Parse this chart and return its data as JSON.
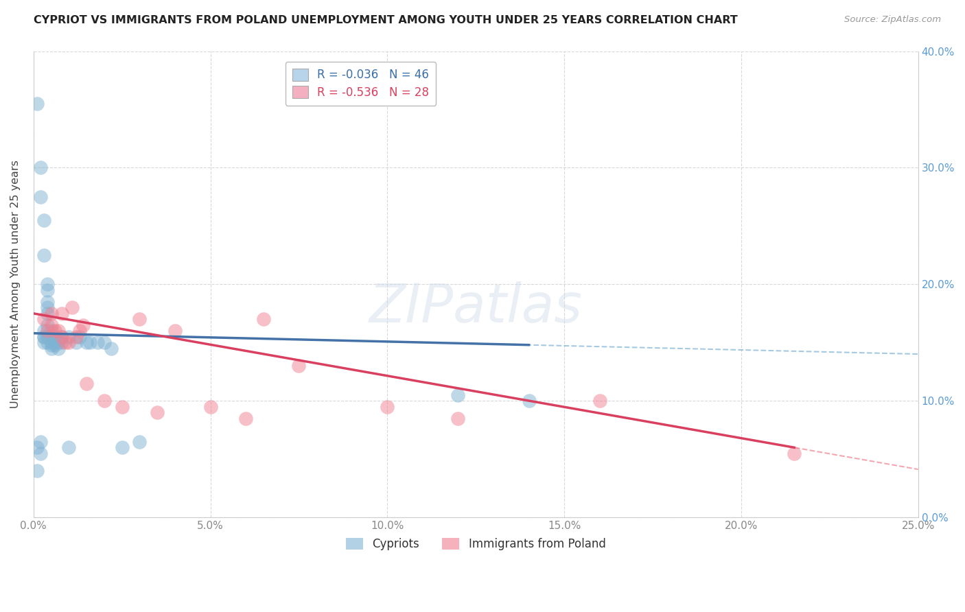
{
  "title": "CYPRIOT VS IMMIGRANTS FROM POLAND UNEMPLOYMENT AMONG YOUTH UNDER 25 YEARS CORRELATION CHART",
  "source": "Source: ZipAtlas.com",
  "ylabel": "Unemployment Among Youth under 25 years",
  "xlim": [
    0.0,
    0.25
  ],
  "ylim": [
    0.0,
    0.4
  ],
  "xticks": [
    0.0,
    0.05,
    0.1,
    0.15,
    0.2,
    0.25
  ],
  "yticks": [
    0.0,
    0.1,
    0.2,
    0.3,
    0.4
  ],
  "xticklabels": [
    "0.0%",
    "5.0%",
    "10.0%",
    "15.0%",
    "20.0%",
    "25.0%"
  ],
  "yticklabels_left": [
    "0.0%",
    "10.0%",
    "20.0%",
    "30.0%",
    "40.0%"
  ],
  "yticklabels_right": [
    "0.0%",
    "10.0%",
    "20.0%",
    "30.0%",
    "40.0%"
  ],
  "legend1_label1": "R = -0.036   N = 46",
  "legend1_label2": "R = -0.536   N = 28",
  "series1_label": "Cypriots",
  "series2_label": "Immigrants from Poland",
  "series1_color": "#7fb3d3",
  "series2_color": "#f08090",
  "series1_line_color": "#4472a8",
  "series2_line_color": "#d94060",
  "watermark": "ZIPatlas",
  "background_color": "#ffffff",
  "grid_color": "#c8c8c8",
  "title_color": "#222222",
  "axis_label_color": "#444444",
  "tick_label_color_left": "#888888",
  "tick_label_color_right": "#5b9bd5",
  "legend_patch1_color": "#b8d4ea",
  "legend_patch2_color": "#f4b0c0",
  "legend_text_color1": "#3a6ea8",
  "legend_text_color2": "#d94060",
  "cyp_x": [
    0.001,
    0.001,
    0.001,
    0.002,
    0.002,
    0.002,
    0.002,
    0.003,
    0.003,
    0.003,
    0.003,
    0.003,
    0.003,
    0.004,
    0.004,
    0.004,
    0.004,
    0.004,
    0.004,
    0.004,
    0.004,
    0.005,
    0.005,
    0.005,
    0.005,
    0.005,
    0.006,
    0.006,
    0.006,
    0.007,
    0.007,
    0.008,
    0.008,
    0.01,
    0.01,
    0.012,
    0.013,
    0.015,
    0.016,
    0.018,
    0.02,
    0.022,
    0.025,
    0.03,
    0.12,
    0.14
  ],
  "cyp_y": [
    0.355,
    0.06,
    0.04,
    0.3,
    0.275,
    0.065,
    0.055,
    0.255,
    0.225,
    0.16,
    0.155,
    0.155,
    0.15,
    0.2,
    0.195,
    0.185,
    0.18,
    0.175,
    0.165,
    0.155,
    0.15,
    0.16,
    0.155,
    0.15,
    0.148,
    0.145,
    0.155,
    0.15,
    0.148,
    0.15,
    0.145,
    0.155,
    0.15,
    0.155,
    0.06,
    0.15,
    0.155,
    0.15,
    0.15,
    0.15,
    0.15,
    0.145,
    0.06,
    0.065,
    0.105,
    0.1
  ],
  "pol_x": [
    0.003,
    0.004,
    0.005,
    0.005,
    0.006,
    0.007,
    0.008,
    0.008,
    0.009,
    0.01,
    0.011,
    0.012,
    0.013,
    0.014,
    0.015,
    0.02,
    0.025,
    0.03,
    0.035,
    0.04,
    0.05,
    0.06,
    0.065,
    0.075,
    0.1,
    0.12,
    0.16,
    0.215
  ],
  "pol_y": [
    0.17,
    0.16,
    0.175,
    0.165,
    0.16,
    0.16,
    0.155,
    0.175,
    0.15,
    0.15,
    0.18,
    0.155,
    0.16,
    0.165,
    0.115,
    0.1,
    0.095,
    0.17,
    0.09,
    0.16,
    0.095,
    0.085,
    0.17,
    0.13,
    0.095,
    0.085,
    0.1,
    0.055
  ],
  "regline1_x0": 0.0,
  "regline1_y0": 0.158,
  "regline1_x1": 0.14,
  "regline1_y1": 0.148,
  "regline2_x0": 0.0,
  "regline2_y0": 0.175,
  "regline2_x1": 0.215,
  "regline2_y1": 0.06
}
